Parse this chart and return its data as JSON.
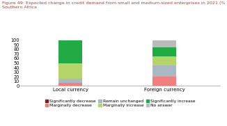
{
  "title_line1": "Figure 49: Expected change in credit demand from small and medium-sized enterprises in 2021 (% respondents),",
  "title_line2": "Southern Africa",
  "categories": [
    "Local currency",
    "Foreign currency"
  ],
  "segments": [
    {
      "label": "Significantly decrease",
      "color": "#8B1A1A",
      "values": [
        0,
        0
      ]
    },
    {
      "label": "Marginally decrease",
      "color": "#F08080",
      "values": [
        7,
        20
      ]
    },
    {
      "label": "Remain unchanged",
      "color": "#A9B8C3",
      "values": [
        8,
        25
      ]
    },
    {
      "label": "Marginally increase",
      "color": "#B5D56A",
      "values": [
        35,
        20
      ]
    },
    {
      "label": "Significantly increase",
      "color": "#22AA44",
      "values": [
        50,
        20
      ]
    },
    {
      "label": "No answer",
      "color": "#BBBBBB",
      "values": [
        0,
        15
      ]
    }
  ],
  "ylim": [
    0,
    100
  ],
  "yticks": [
    0,
    10,
    20,
    30,
    40,
    50,
    60,
    70,
    80,
    90,
    100
  ],
  "bar_width": 0.12,
  "x_positions": [
    0.25,
    0.72
  ],
  "xlim": [
    0.0,
    1.0
  ],
  "title_color": "#C0392B",
  "title_fontsize": 4.6,
  "legend_fontsize": 4.3,
  "tick_fontsize": 4.8,
  "xlabel_fontsize": 5.0
}
